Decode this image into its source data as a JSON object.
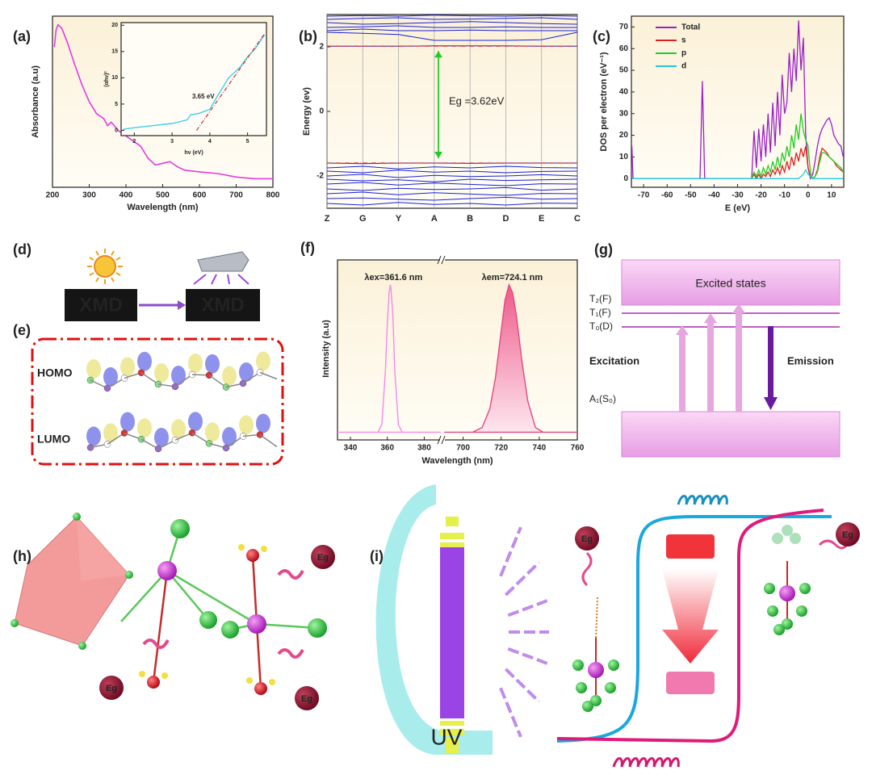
{
  "chart_data": [
    {
      "type": "line",
      "panel_label": "(a)",
      "xlabel": "Wavelength (nm)",
      "ylabel": "Absorbance (a.u)",
      "x": [
        205,
        210,
        215,
        225,
        240,
        260,
        280,
        300,
        320,
        340,
        350,
        360,
        380,
        400,
        420,
        440,
        460,
        480,
        500,
        520,
        540,
        560,
        600,
        650,
        700,
        750,
        800
      ],
      "values": [
        0.82,
        0.92,
        0.95,
        0.93,
        0.85,
        0.72,
        0.6,
        0.5,
        0.43,
        0.4,
        0.36,
        0.38,
        0.33,
        0.3,
        0.27,
        0.24,
        0.17,
        0.13,
        0.14,
        0.15,
        0.12,
        0.1,
        0.09,
        0.08,
        0.06,
        0.05,
        0.05
      ],
      "color": "#e23be0",
      "xlim": [
        200,
        800
      ],
      "xticks": [
        200,
        300,
        400,
        500,
        600,
        700,
        800
      ],
      "ylim": [
        0,
        1
      ],
      "inset": {
        "type": "line",
        "xlabel": "hν (eV)",
        "ylabel": "(αhν)²",
        "x": [
          1.7,
          2.0,
          2.5,
          3.0,
          3.4,
          3.5,
          3.7,
          4.0,
          4.2,
          4.5,
          4.8,
          5.0,
          5.2,
          5.45
        ],
        "values": [
          0.2,
          0.5,
          0.9,
          1.3,
          2.0,
          3.0,
          3.2,
          4.0,
          6.5,
          10,
          12,
          14,
          15.5,
          18.2
        ],
        "color": "#3fd0e6",
        "xlim": [
          1.65,
          5.5
        ],
        "xticks": [
          2,
          3,
          4,
          5
        ],
        "ylim": [
          -1,
          20.5
        ],
        "yticks": [
          0,
          5,
          10,
          15,
          20
        ],
        "fit": {
          "x": [
            3.65,
            5.45
          ],
          "values": [
            0,
            18.4
          ],
          "color": "#d0302a"
        },
        "annotation": "3.65 eV"
      }
    },
    {
      "type": "band",
      "panel_label": "(b)",
      "ylabel": "Energy (ev)",
      "categories": [
        "Z",
        "G",
        "Y",
        "A",
        "B",
        "D",
        "E",
        "C"
      ],
      "ylim": [
        -3,
        3
      ],
      "yticks": [
        -2,
        0,
        2
      ],
      "color": "#1a22d8",
      "bands": [
        [
          2.02,
          2.02,
          2.02,
          2.03,
          2.03,
          2.03,
          2.02,
          2.02
        ],
        [
          2.45,
          2.42,
          2.38,
          2.2,
          2.2,
          2.2,
          2.22,
          2.45
        ],
        [
          2.5,
          2.55,
          2.5,
          2.5,
          2.52,
          2.5,
          2.5,
          2.5
        ],
        [
          2.6,
          2.62,
          2.65,
          2.6,
          2.6,
          2.62,
          2.6,
          2.6
        ],
        [
          2.75,
          2.7,
          2.72,
          2.75,
          2.78,
          2.75,
          2.72,
          2.7
        ],
        [
          2.85,
          2.88,
          2.9,
          2.85,
          2.86,
          2.88,
          2.9,
          2.85
        ],
        [
          2.95,
          2.97,
          2.95,
          2.98,
          2.96,
          2.95,
          2.97,
          2.95
        ],
        [
          -1.6,
          -1.62,
          -1.6,
          -1.6,
          -1.61,
          -1.6,
          -1.6,
          -1.6
        ],
        [
          -1.75,
          -1.7,
          -1.78,
          -1.72,
          -1.75,
          -1.7,
          -1.74,
          -1.75
        ],
        [
          -1.85,
          -1.9,
          -1.82,
          -1.88,
          -1.85,
          -1.9,
          -1.86,
          -1.85
        ],
        [
          -2.0,
          -1.95,
          -2.05,
          -1.98,
          -2.02,
          -2.0,
          -1.96,
          -2.0
        ],
        [
          -2.1,
          -2.15,
          -2.12,
          -2.18,
          -2.1,
          -2.14,
          -2.12,
          -2.1
        ],
        [
          -2.25,
          -2.2,
          -2.28,
          -2.22,
          -2.26,
          -2.3,
          -2.24,
          -2.25
        ],
        [
          -2.4,
          -2.45,
          -2.38,
          -2.42,
          -2.4,
          -2.36,
          -2.44,
          -2.4
        ],
        [
          -2.55,
          -2.5,
          -2.58,
          -2.52,
          -2.56,
          -2.6,
          -2.54,
          -2.55
        ],
        [
          -2.7,
          -2.68,
          -2.72,
          -2.75,
          -2.7,
          -2.66,
          -2.72,
          -2.7
        ],
        [
          -2.85,
          -2.9,
          -2.82,
          -2.88,
          -2.85,
          -2.9,
          -2.84,
          -2.85
        ]
      ],
      "edges": [
        2.02,
        -1.6
      ],
      "edge_color": "#e0302a",
      "arrow_color": "#22cc22",
      "annotation": "Eg =3.62eV",
      "annotation_color": "#e0302a"
    },
    {
      "type": "line",
      "panel_label": "(c)",
      "xlabel": "E (eV)",
      "ylabel": "DOS per electron (eV⁻¹)",
      "x": [
        -75,
        -74.5,
        -46,
        -45,
        -44,
        -24,
        -23,
        -22,
        -21,
        -20,
        -19,
        -18,
        -17,
        -16,
        -15,
        -14,
        -13,
        -12,
        -11,
        -10,
        -9,
        -8,
        -7,
        -6,
        -5,
        -4,
        -3,
        -2,
        -1,
        0,
        1,
        2,
        3,
        4,
        5,
        6,
        7,
        8,
        9,
        10,
        11,
        12,
        13,
        14,
        15
      ],
      "series": [
        {
          "name": "Total",
          "color": "#9b1fc8",
          "values": [
            15,
            0,
            0,
            45,
            0,
            0,
            22,
            5,
            23,
            8,
            25,
            10,
            30,
            12,
            35,
            15,
            40,
            20,
            48,
            30,
            35,
            58,
            40,
            60,
            45,
            73,
            50,
            65,
            20,
            5,
            0,
            2,
            8,
            15,
            20,
            23,
            25,
            27,
            28,
            25,
            20,
            18,
            16,
            15,
            10
          ]
        },
        {
          "name": "s",
          "color": "#e02020",
          "values": [
            0,
            0,
            0,
            0,
            0,
            0,
            2,
            0,
            2,
            0,
            2,
            1,
            3,
            1,
            4,
            2,
            5,
            2,
            6,
            3,
            8,
            4,
            10,
            6,
            12,
            8,
            14,
            10,
            15,
            5,
            1,
            0,
            1,
            4,
            10,
            14,
            13,
            12,
            10,
            9,
            8,
            6,
            5,
            4,
            3
          ]
        },
        {
          "name": "p",
          "color": "#22cc22",
          "values": [
            0,
            0,
            0,
            0,
            0,
            0,
            3,
            1,
            4,
            1,
            5,
            2,
            6,
            3,
            8,
            4,
            10,
            5,
            12,
            8,
            15,
            10,
            20,
            14,
            25,
            18,
            30,
            22,
            18,
            15,
            3,
            0,
            1,
            3,
            8,
            12,
            12,
            11,
            10,
            9,
            8,
            7,
            6,
            5,
            3
          ]
        },
        {
          "name": "d",
          "color": "#22c8e8",
          "values": [
            0,
            0,
            0,
            0,
            0,
            0,
            0,
            0,
            0,
            0,
            0,
            0,
            0,
            0,
            0,
            0,
            0,
            0,
            0,
            0,
            0,
            0,
            0,
            0,
            0,
            0,
            1,
            2,
            4,
            2,
            1,
            0,
            0,
            0,
            0,
            0,
            0,
            0,
            0,
            0,
            0,
            0,
            0,
            0,
            0
          ]
        }
      ],
      "xlim": [
        -75.2,
        15.2
      ],
      "xticks": [
        -70,
        -60,
        -50,
        -40,
        -30,
        -20,
        -10,
        0,
        10
      ],
      "ylim": [
        -4,
        75
      ],
      "yticks": [
        0,
        10,
        20,
        30,
        40,
        50,
        60,
        70
      ],
      "legend": "top-left"
    },
    {
      "type": "line",
      "panel_label": "(f)",
      "xlabel": "Wavelength (nm)",
      "ylabel": "Intensity (a.u)",
      "xlim_segments": [
        [
          333,
          389
        ],
        [
          690,
          760
        ]
      ],
      "xticks": [
        340,
        360,
        380,
        700,
        720,
        740,
        760
      ],
      "ylim": [
        0,
        1.16
      ],
      "series": [
        {
          "name": "λex=361.6 nm",
          "color": "#f48ae6",
          "x": [
            333,
            355,
            357,
            359,
            360,
            361,
            361.6,
            362,
            363,
            364,
            366,
            368,
            389
          ],
          "values": [
            0.05,
            0.05,
            0.1,
            0.45,
            0.75,
            0.95,
            1.0,
            0.97,
            0.8,
            0.45,
            0.1,
            0.05,
            0.05
          ]
        },
        {
          "name": "λem=724.1 nm",
          "color": "#e24a80",
          "x": [
            690,
            705,
            710,
            714,
            717,
            720,
            722,
            724.1,
            726,
            728,
            731,
            734,
            738,
            742,
            760
          ],
          "values": [
            0.05,
            0.05,
            0.08,
            0.2,
            0.4,
            0.7,
            0.9,
            1.0,
            0.95,
            0.8,
            0.5,
            0.25,
            0.08,
            0.05,
            0.05
          ]
        }
      ]
    }
  ],
  "panels": {
    "d": {
      "label": "(d)",
      "photo_text": "XMD"
    },
    "e": {
      "label": "(e)",
      "homo": "HOMO",
      "lumo": "LUMO"
    },
    "g": {
      "label": "(g)",
      "excited": "Excited states",
      "levels": [
        "T₂(F)",
        "T₁(F)",
        "T₀(D)"
      ],
      "ground": "A₁(S₀)",
      "excitation": "Excitation",
      "emission": "Emission"
    },
    "h": {
      "label": "(h)",
      "ion": "Eg"
    },
    "i": {
      "label": "(i)",
      "ion": "Eg",
      "lamp": "UV"
    }
  }
}
